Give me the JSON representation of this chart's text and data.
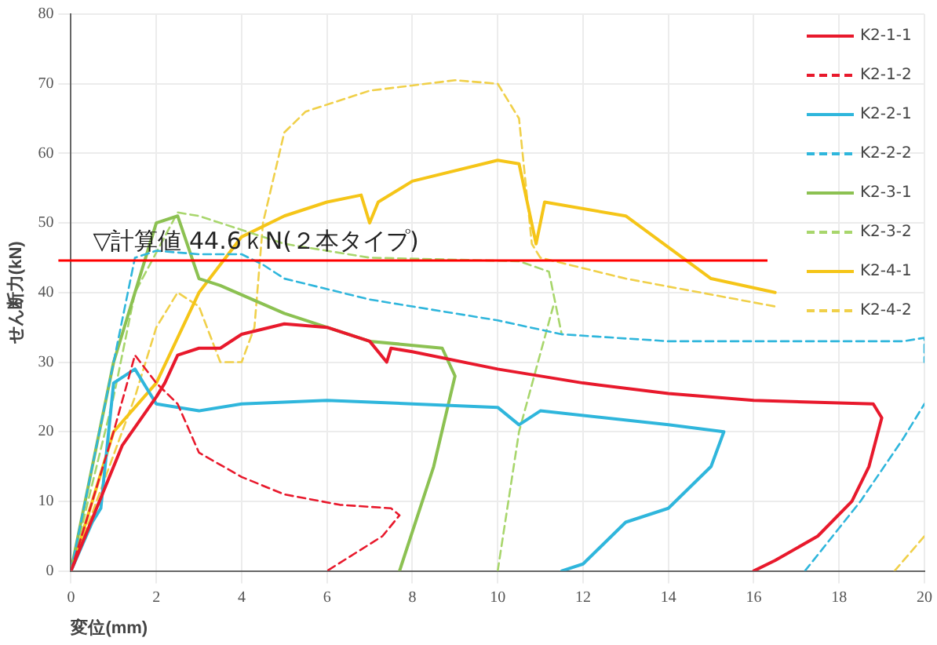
{
  "chart_data": {
    "type": "line",
    "xlabel": "変位(mm)",
    "ylabel": "せん断力(kN)",
    "xlim": [
      0,
      20
    ],
    "ylim": [
      0,
      80
    ],
    "xticks": [
      0,
      2,
      4,
      6,
      8,
      10,
      12,
      14,
      16,
      18,
      20
    ],
    "yticks": [
      0,
      10,
      20,
      30,
      40,
      50,
      60,
      70,
      80
    ],
    "grid": true,
    "legend": "top right",
    "marker": "none",
    "ref_lines": [
      {
        "axis": "y",
        "value": 44.6,
        "label": "▽計算値 44.6ｋN(２本タイプ)",
        "color": "#ff0000"
      }
    ],
    "series": [
      {
        "name": "K2-1-1",
        "color": "#e8192c",
        "line_style": "solid",
        "x": [
          0,
          1.2,
          2,
          2.2,
          2.5,
          3,
          3.5,
          4,
          5,
          6,
          7,
          7.4,
          7.5,
          8,
          10,
          12,
          14,
          16,
          18.8,
          19,
          18.7,
          18.3,
          17.5,
          16.5,
          16
        ],
        "values": [
          0,
          18,
          25,
          27,
          31,
          32,
          32,
          34,
          35.5,
          35,
          33,
          30,
          32,
          31.5,
          29,
          27,
          25.5,
          24.5,
          24,
          22,
          15,
          10,
          5,
          1.5,
          0
        ]
      },
      {
        "name": "K2-1-2",
        "color": "#e8192c",
        "line_style": "dashed",
        "x": [
          0,
          1,
          1.5,
          2,
          2.5,
          3,
          4,
          5,
          6.3,
          7.5,
          7.7,
          7.3,
          6
        ],
        "values": [
          0,
          20,
          31,
          27,
          24,
          17,
          13.5,
          11,
          9.5,
          9,
          8,
          5,
          0
        ]
      },
      {
        "name": "K2-2-1",
        "color": "#2fb6dc",
        "line_style": "solid",
        "x": [
          0,
          0.5,
          0.7,
          1,
          1.5,
          2,
          3,
          4,
          6,
          8,
          10,
          10.5,
          11,
          14,
          15.3,
          15,
          14,
          13,
          12,
          11.5
        ],
        "values": [
          0,
          7,
          9,
          27,
          29,
          24,
          23,
          24,
          24.5,
          24,
          23.5,
          21,
          23,
          21,
          20,
          15,
          9,
          7,
          1,
          0
        ]
      },
      {
        "name": "K2-2-2",
        "color": "#2fb6dc",
        "line_style": "dashed",
        "x": [
          0,
          1.5,
          2,
          3,
          4,
          4.5,
          5,
          7,
          10,
          11.5,
          14,
          19.5,
          20,
          20,
          19,
          17.2,
          18.5,
          19.5,
          20
        ],
        "values": [
          0,
          45,
          46,
          45.5,
          45.5,
          44,
          42,
          39,
          36,
          34,
          33,
          33,
          33.5,
          30,
          null,
          0,
          10,
          19,
          24
        ]
      },
      {
        "name": "K2-3-1",
        "color": "#8cc152",
        "line_style": "solid",
        "x": [
          0,
          1,
          1.6,
          2,
          2.5,
          3,
          3.5,
          5,
          7,
          8.7,
          9,
          8.5,
          7.7
        ],
        "values": [
          0,
          30,
          42,
          50,
          51,
          42,
          41,
          37,
          33,
          32,
          28,
          15,
          0
        ]
      },
      {
        "name": "K2-3-2",
        "color": "#a8d66c",
        "line_style": "dashed",
        "x": [
          0,
          1,
          1.5,
          2.5,
          3,
          5,
          7,
          10.5,
          11.2,
          11.3,
          11.5,
          11,
          10,
          10.5,
          11.3
        ],
        "values": [
          0,
          25,
          40,
          51.5,
          51,
          47,
          45,
          44.5,
          43,
          40,
          34,
          null,
          0,
          20,
          38
        ]
      },
      {
        "name": "K2-4-1",
        "color": "#f5c518",
        "line_style": "solid",
        "x": [
          0,
          1,
          2,
          3,
          3.5,
          4,
          5,
          6,
          6.8,
          7,
          7.2,
          8,
          10,
          10.5,
          10.9,
          11.1,
          13,
          15,
          16.5
        ],
        "values": [
          0,
          20,
          27,
          40,
          44,
          48,
          51,
          53,
          54,
          50,
          53,
          56,
          59,
          58.5,
          47,
          53,
          51,
          42,
          40
        ]
      },
      {
        "name": "K2-4-2",
        "color": "#f0d04a",
        "line_style": "dashed",
        "x": [
          0,
          1.5,
          2,
          2.5,
          3,
          3.5,
          4,
          4.3,
          4.5,
          5,
          5.5,
          7,
          9,
          10,
          10.5,
          10.8,
          11,
          13,
          16.5,
          18,
          19.3,
          20
        ],
        "values": [
          0,
          25,
          35,
          40,
          38,
          30,
          30,
          35,
          50,
          63,
          66,
          69,
          70.5,
          70,
          65,
          47,
          45,
          42,
          38,
          null,
          0,
          5
        ]
      }
    ]
  }
}
